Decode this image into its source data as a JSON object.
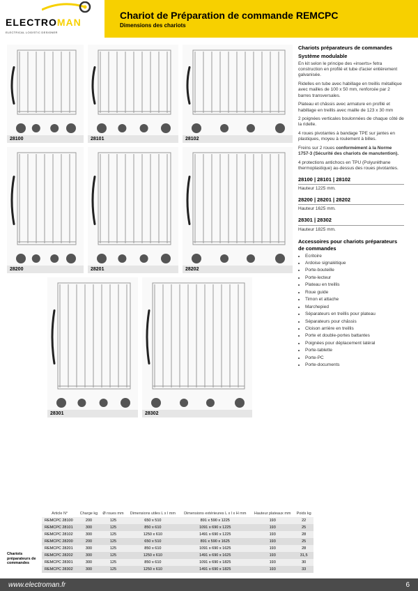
{
  "logo": {
    "part1": "ELECTRO",
    "part2": "MAN",
    "tagline": "ELECTRICAL LOGISTIC DESIGNER"
  },
  "header": {
    "title": "Chariot de Préparation de commande REMCPC",
    "subtitle": "Dimensions des chariots"
  },
  "carts": {
    "row1": [
      {
        "code": "28100",
        "w": "w1"
      },
      {
        "code": "28101",
        "w": "w2"
      },
      {
        "code": "28102",
        "w": "w3"
      }
    ],
    "row2": [
      {
        "code": "28200",
        "w": "w1"
      },
      {
        "code": "28201",
        "w": "w2"
      },
      {
        "code": "28202",
        "w": "w3"
      }
    ],
    "row3": [
      {
        "code": "28301",
        "w": "w2"
      },
      {
        "code": "28302",
        "w": "w3"
      }
    ]
  },
  "sidebar": {
    "title1": "Chariots préparateurs de commandes",
    "title2": "Système modulable",
    "paras": [
      "En kit selon le principe des «inserts» fetra construction en profilé et tube d'acier entièrement galvanisée.",
      "Ridelles en tube avec habillage en treillis métallique avec mailles de 100 x 50 mm, renforcée par 2 barres transversales.",
      "Plateau et châssis avec armature en profilé et habillage en treillis avec maille de 123 x 30 mm",
      "2 poignées verticales boulonnées de chaque côté de la ridelle.",
      "4 roues pivotantes à bandage TPE sur jantes en plastiques, moyeu à roulement à billes."
    ],
    "brakes": "Freins sur 2 roues ",
    "brakes_bold": "conformément à la Norme 1757-3 (Sécurité des chariots de manutention).",
    "tpu": "4 protections antichocs en TPU (Polyuréthane thermoplastique) au-dessus des roues pivotantes.",
    "heights": [
      {
        "codes": "28100 | 28101 | 28102",
        "h": "Hauteur 1225 mm."
      },
      {
        "codes": "28200 | 28201 | 28202",
        "h": "Hauteur 1625 mm."
      },
      {
        "codes": "28301 | 28302",
        "h": "Hauteur 1825 mm."
      }
    ],
    "acc_title": "Accessoires pour chariots préparateurs de commandes",
    "accessories": [
      "Ecritoire",
      "Ardoise signalétique",
      "Porte-bouteille",
      "Porte-lecteur",
      "Plateau en treillis",
      "Roue guide",
      "Timon et attache",
      "Marchepied",
      "Séparateurs en treillis pour plateau",
      "Séparateurs pour châssis",
      "Cloison arrière en treillis",
      "Porte et double-portes battantes",
      "Poignées pour déplacement latéral",
      "Porte-tablette",
      "Porte-PC",
      "Porte-documents"
    ]
  },
  "table": {
    "side_label": "Chariots préparateurs de commandes",
    "head": [
      "Article N°",
      "Charge kg",
      "Ø roues mm",
      "Dimensions utiles L x l mm",
      "Dimensions extérieures L x l x H mm",
      "Hauteur plateaux mm",
      "Poids kg"
    ],
    "rows": [
      [
        "REMCPC 28100",
        "200",
        "125",
        "650 x 510",
        "891 x 590 x 1225",
        "193",
        "22"
      ],
      [
        "REMCPC 28101",
        "300",
        "125",
        "850 x 610",
        "1091 x 690 x 1225",
        "193",
        "25"
      ],
      [
        "REMCPC 28102",
        "300",
        "125",
        "1250 x 610",
        "1491 x 690 x 1225",
        "193",
        "28"
      ],
      [
        "REMCPC 28200",
        "200",
        "125",
        "650 x 510",
        "891 x 590 x 1625",
        "193",
        "25"
      ],
      [
        "REMCPC 28201",
        "300",
        "125",
        "850 x 610",
        "1091 x 690 x 1625",
        "193",
        "28"
      ],
      [
        "REMCPC 28202",
        "300",
        "125",
        "1250 x 610",
        "1491 x 690 x 1625",
        "193",
        "31,5"
      ],
      [
        "REMCPC 28301",
        "300",
        "125",
        "850 x 610",
        "1091 x 690 x 1825",
        "193",
        "30"
      ],
      [
        "REMCPC 28302",
        "300",
        "125",
        "1250 x 610",
        "1491 x 690 x 1825",
        "193",
        "33"
      ]
    ]
  },
  "footer": {
    "url": "www.electroman.fr",
    "page": "6"
  },
  "colors": {
    "yellow": "#f7d000",
    "footer_bg": "#4b4b4b",
    "label_bg": "#e6e6e6",
    "row_odd": "#eee",
    "row_even": "#ddd"
  }
}
